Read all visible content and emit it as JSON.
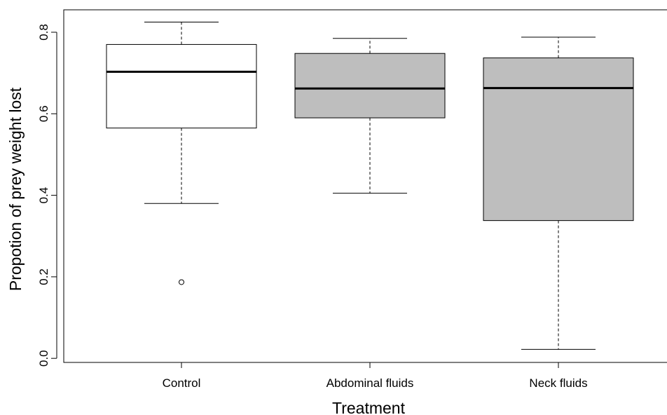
{
  "chart_data": {
    "type": "boxplot",
    "title": "",
    "xlabel": "Treatment",
    "ylabel": "Propotion of prey weight lost",
    "ylim": [
      -0.01,
      0.855
    ],
    "yticks": [
      0.0,
      0.2,
      0.4,
      0.6,
      0.8
    ],
    "ytick_labels": [
      "0.0",
      "0.2",
      "0.4",
      "0.6",
      "0.8"
    ],
    "grid": false,
    "categories": [
      "Control",
      "Abdominal fluids",
      "Neck fluids"
    ],
    "boxes": [
      {
        "category": "Control",
        "whisker_low": 0.38,
        "q1": 0.565,
        "median": 0.703,
        "q3": 0.77,
        "whisker_high": 0.825,
        "outliers": [
          0.187
        ],
        "fill": "#ffffff"
      },
      {
        "category": "Abdominal fluids",
        "whisker_low": 0.405,
        "q1": 0.59,
        "median": 0.662,
        "q3": 0.748,
        "whisker_high": 0.785,
        "outliers": [],
        "fill": "#bebebe"
      },
      {
        "category": "Neck fluids",
        "whisker_low": 0.022,
        "q1": 0.338,
        "median": 0.663,
        "q3": 0.737,
        "whisker_high": 0.788,
        "outliers": [],
        "fill": "#bebebe"
      }
    ]
  }
}
